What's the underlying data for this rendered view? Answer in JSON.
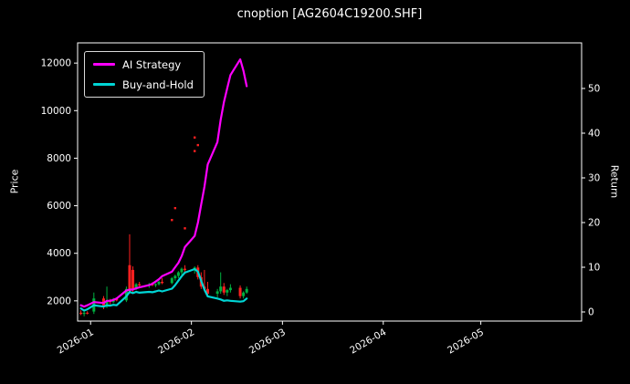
{
  "chart_data": {
    "type": "candlestick+line",
    "title": "cnoption [AG2604C19200.SHF]",
    "ylabel_left": "Price",
    "ylabel_right": "Return",
    "x_tick_labels": [
      "2026-01",
      "2026-02",
      "2026-03",
      "2026-04",
      "2026-05"
    ],
    "x_tick_dates": [
      "2026-01-01",
      "2026-02-01",
      "2026-03-01",
      "2026-04-01",
      "2026-05-01"
    ],
    "price_ticks": [
      2000,
      4000,
      6000,
      8000,
      10000,
      12000
    ],
    "return_ticks": [
      0,
      10,
      20,
      30,
      40,
      50
    ],
    "xlim": [
      "2025-12-28",
      "2026-06-01"
    ],
    "price_lim": [
      1150,
      12850
    ],
    "return_lim": [
      -2.04,
      60.2
    ],
    "grid": false,
    "legend_position": "upper-left",
    "colors": {
      "ai": "#ff00ff",
      "bh": "#00d5d5",
      "up": "#00b140",
      "down": "#ff2020",
      "axis": "#ffffff",
      "background": "#000000",
      "text": "#ffffff"
    },
    "dates": [
      "2025-12-29",
      "2025-12-30",
      "2025-12-31",
      "2026-01-02",
      "2026-01-05",
      "2026-01-06",
      "2026-01-07",
      "2026-01-08",
      "2026-01-09",
      "2026-01-12",
      "2026-01-13",
      "2026-01-14",
      "2026-01-15",
      "2026-01-16",
      "2026-01-19",
      "2026-01-20",
      "2026-01-21",
      "2026-01-22",
      "2026-01-23",
      "2026-01-26",
      "2026-01-27",
      "2026-01-28",
      "2026-01-29",
      "2026-01-30",
      "2026-02-02",
      "2026-02-03",
      "2026-02-04",
      "2026-02-05",
      "2026-02-06",
      "2026-02-09",
      "2026-02-10",
      "2026-02-11",
      "2026-02-12",
      "2026-02-13",
      "2026-02-16",
      "2026-02-17",
      "2026-02-18"
    ],
    "candles_ohlc": [
      [
        1500,
        1600,
        1400,
        1450
      ],
      [
        1450,
        1550,
        1350,
        1500
      ],
      [
        1500,
        1560,
        1430,
        1480
      ],
      [
        1550,
        2350,
        1450,
        2100
      ],
      [
        2100,
        2200,
        1650,
        1750
      ],
      [
        1750,
        2600,
        1700,
        2000
      ],
      [
        2000,
        2080,
        1850,
        1950
      ],
      [
        1950,
        2120,
        1900,
        2080
      ],
      [
        2080,
        2150,
        1980,
        2020
      ],
      [
        2020,
        2600,
        1950,
        2500
      ],
      [
        3500,
        4800,
        2300,
        2400
      ],
      [
        3300,
        3450,
        2350,
        2500
      ],
      [
        2500,
        2750,
        2450,
        2700
      ],
      [
        2700,
        2800,
        2600,
        2650
      ],
      [
        2650,
        2750,
        2550,
        2700
      ],
      [
        2700,
        2780,
        2620,
        2660
      ],
      [
        2660,
        2740,
        2580,
        2700
      ],
      [
        2700,
        2850,
        2650,
        2800
      ],
      [
        2800,
        2950,
        2700,
        2750
      ],
      [
        2750,
        3000,
        2700,
        2950
      ],
      [
        2950,
        3100,
        2850,
        3050
      ],
      [
        3050,
        3250,
        2950,
        3200
      ],
      [
        3200,
        3400,
        3100,
        3350
      ],
      [
        3350,
        3500,
        3200,
        3300
      ],
      [
        3300,
        3450,
        3150,
        3400
      ],
      [
        3400,
        3500,
        2900,
        3000
      ],
      [
        3000,
        3200,
        2500,
        2600
      ],
      [
        2600,
        3300,
        2400,
        2500
      ],
      [
        2500,
        2800,
        2200,
        2300
      ],
      [
        2300,
        2500,
        2150,
        2400
      ],
      [
        2400,
        3200,
        2300,
        2600
      ],
      [
        2600,
        2750,
        2250,
        2350
      ],
      [
        2350,
        2500,
        2200,
        2450
      ],
      [
        2450,
        2700,
        2350,
        2550
      ],
      [
        2550,
        2650,
        2100,
        2200
      ],
      [
        2200,
        2400,
        2100,
        2350
      ],
      [
        2350,
        2600,
        2300,
        2500
      ]
    ],
    "outlier_ticks": [
      {
        "date": "2026-01-26",
        "price": 5400
      },
      {
        "date": "2026-01-27",
        "price": 5900
      },
      {
        "date": "2026-01-30",
        "price": 5050
      },
      {
        "date": "2026-02-02",
        "price": 8300
      },
      {
        "date": "2026-02-02",
        "price": 8870
      },
      {
        "date": "2026-02-03",
        "price": 8550
      }
    ],
    "series": [
      {
        "name": "AI Strategy",
        "color_key": "ai",
        "values": [
          1.5,
          1.2,
          1.5,
          2.2,
          2.0,
          2.5,
          2.5,
          2.7,
          3.0,
          4.8,
          5.0,
          5.0,
          5.3,
          5.5,
          6.0,
          6.3,
          6.8,
          7.3,
          8.0,
          9.0,
          10.0,
          11.0,
          12.5,
          14.5,
          17,
          20,
          24,
          28,
          33,
          38,
          43,
          47,
          50,
          53,
          56.5,
          54,
          50.5
        ]
      },
      {
        "name": "Buy-and-Hold",
        "color_key": "bh",
        "values": [
          0.8,
          0.3,
          0.6,
          1.5,
          1.2,
          1.5,
          1.4,
          1.6,
          1.5,
          3.5,
          4.5,
          4.2,
          4.5,
          4.3,
          4.5,
          4.4,
          4.6,
          4.8,
          4.6,
          5.2,
          6.0,
          7.0,
          8.0,
          8.8,
          9.6,
          9.0,
          7.0,
          5.0,
          3.5,
          3.0,
          2.8,
          2.5,
          2.6,
          2.5,
          2.3,
          2.4,
          3.0
        ]
      }
    ]
  }
}
